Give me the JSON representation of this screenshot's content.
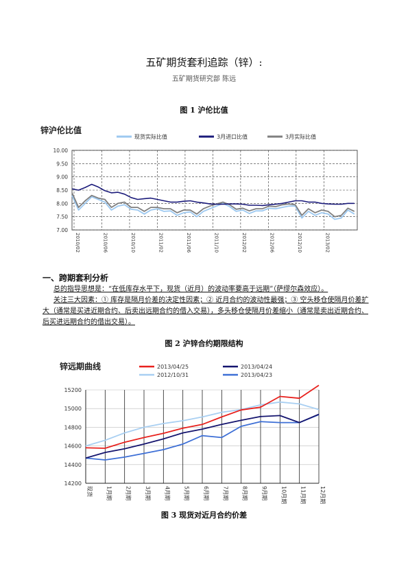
{
  "title": "五矿期货套利追踪（锌）:",
  "subtitle": "五矿期货研究部   陈远",
  "fig1_caption": "图 1   沪伦比值",
  "fig2_caption": "图 2   沪锌合约期限结构",
  "fig3_caption": "图 3   现货对近月合约价差",
  "section_heading": "一、跨期套利分析",
  "para1": "总的指导思想是：“在低库存水平下，现货（近月）的波动率要高于远期”（萨缪尔森效应）。",
  "para2": "关注三大因素：① 库存是隔月价差的决定性因素；② 近月合约的波动性最强；③ 空头移仓使隔月价差扩大（通常是买进近期合约、后卖出远期合约的借入交易），多头移仓使隔月价差缩小（通常是卖出近期合约、后买进远期合约的借出交易）。",
  "chart_data": [
    {
      "type": "line",
      "title": "锌沪伦比值",
      "legend": [
        "现货实际比值",
        "3月进口比值",
        "3月实际比值"
      ],
      "legend_placement": "top",
      "colors": [
        "#9cc8f0",
        "#1a1a7a",
        "#7f7f7f"
      ],
      "ylim": [
        7.0,
        10.0
      ],
      "yticks": [
        "10.00",
        "9.50",
        "9.00",
        "8.50",
        "8.00",
        "7.50",
        "7.00"
      ],
      "xticks": [
        "2010/02",
        "2010/06",
        "2010/10",
        "2011/02",
        "2011/06",
        "2011/10",
        "2012/02",
        "2012/06",
        "2012/10",
        "2013/02"
      ],
      "grid": true,
      "series": [
        {
          "name": "3月进口比值",
          "points": [
            8.55,
            8.5,
            8.6,
            8.72,
            8.62,
            8.48,
            8.4,
            8.42,
            8.35,
            8.22,
            8.15,
            8.18,
            8.2,
            8.15,
            8.1,
            8.05,
            8.05,
            8.08,
            8.1,
            8.05,
            8.02,
            7.98,
            7.97,
            7.97,
            7.98,
            7.98,
            7.97,
            7.93,
            7.93,
            7.92,
            7.95,
            7.97,
            8.0,
            8.05,
            8.1,
            8.1,
            8.05,
            8.05,
            8.0,
            7.98,
            7.97,
            7.97,
            8.0,
            8.0
          ]
        },
        {
          "name": "现货实际比值",
          "points": [
            8.3,
            7.75,
            8.0,
            8.25,
            8.15,
            8.05,
            7.75,
            7.9,
            7.95,
            7.78,
            7.75,
            7.6,
            7.75,
            7.8,
            7.7,
            7.72,
            7.55,
            7.65,
            7.68,
            7.5,
            7.7,
            7.8,
            7.9,
            8.0,
            7.88,
            7.7,
            7.75,
            7.62,
            7.72,
            7.72,
            7.82,
            7.8,
            7.85,
            7.9,
            7.9,
            7.45,
            7.7,
            7.55,
            7.65,
            7.6,
            7.4,
            7.45,
            7.75,
            7.6
          ]
        },
        {
          "name": "3月实际比值",
          "points": [
            8.4,
            7.85,
            8.1,
            8.3,
            8.2,
            8.15,
            7.85,
            8.0,
            8.05,
            7.85,
            7.85,
            7.7,
            7.85,
            7.85,
            7.8,
            7.8,
            7.65,
            7.75,
            7.75,
            7.6,
            7.8,
            7.9,
            7.98,
            8.05,
            7.95,
            7.78,
            7.82,
            7.72,
            7.8,
            7.8,
            7.9,
            7.88,
            7.95,
            7.98,
            7.95,
            7.55,
            7.8,
            7.65,
            7.75,
            7.7,
            7.5,
            7.55,
            7.82,
            7.7
          ]
        }
      ]
    },
    {
      "type": "line",
      "title": "锌远期曲线",
      "legend": [
        "2013/04/25",
        "2013/04/24",
        "2012/10/31",
        "2013/04/23"
      ],
      "legend_placement": "top",
      "colors": [
        "#e8201c",
        "#14146e",
        "#a8cff2",
        "#3d6fd6"
      ],
      "ylim": [
        14200,
        15200
      ],
      "yticks": [
        "15200",
        "15000",
        "14800",
        "14600",
        "14400",
        "14200"
      ],
      "categories": [
        "现货",
        "1月期",
        "2月期",
        "3月期",
        "4月期",
        "5月期",
        "6月期",
        "7月期",
        "8月期",
        "9月期",
        "10月期",
        "11月期",
        "12月期"
      ],
      "grid": true,
      "series": [
        {
          "name": "2013/04/25",
          "values": [
            14580,
            14575,
            14640,
            14690,
            14735,
            14790,
            14830,
            14910,
            14985,
            15015,
            15130,
            15110,
            15250
          ]
        },
        {
          "name": "2013/04/24",
          "values": [
            14470,
            14530,
            14570,
            14620,
            14675,
            14740,
            14780,
            14830,
            14875,
            14915,
            14925,
            14850,
            14940
          ]
        },
        {
          "name": "2012/10/31",
          "values": [
            14600,
            14660,
            14740,
            14800,
            14840,
            14870,
            14910,
            14960,
            14990,
            15040,
            15070,
            15050,
            14990
          ]
        },
        {
          "name": "2013/04/23",
          "values": [
            14470,
            14450,
            14480,
            14520,
            14560,
            14620,
            14710,
            14690,
            14810,
            14860,
            14850,
            14850,
            14935
          ]
        }
      ]
    }
  ]
}
